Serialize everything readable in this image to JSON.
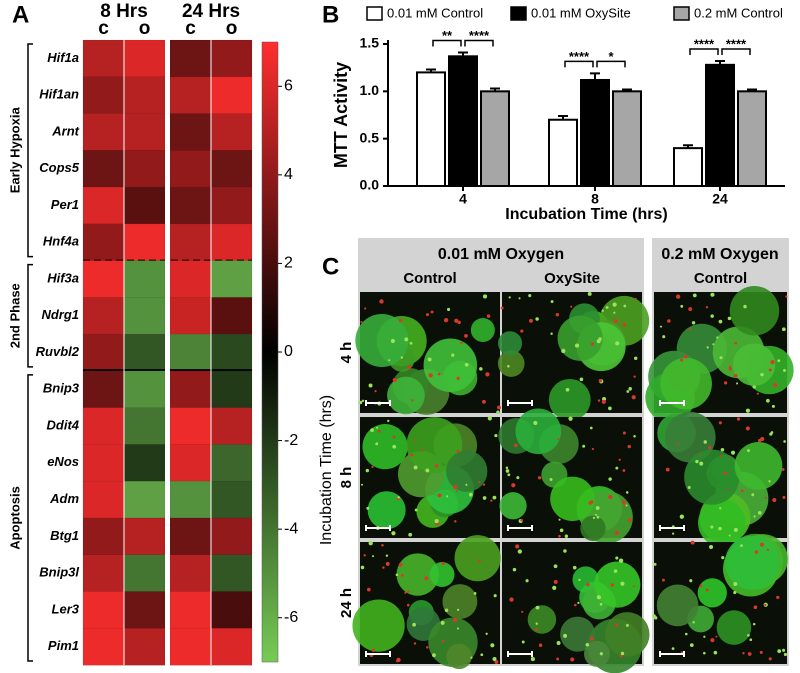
{
  "panel_labels": [
    "A",
    "B",
    "C"
  ],
  "chart_data": [
    {
      "type": "heatmap",
      "column_groups": [
        "8 Hrs",
        "24 Hrs"
      ],
      "columns": [
        "c",
        "o",
        "c",
        "o"
      ],
      "row_groups": [
        {
          "name": "Early Hypoxia",
          "rows": [
            "Hif1a",
            "Hif1an",
            "Arnt",
            "Cops5",
            "Per1",
            "Hnf4a"
          ],
          "values": [
            [
              5,
              6,
              3,
              4
            ],
            [
              4,
              5,
              5,
              6.5
            ],
            [
              5,
              5,
              3,
              5
            ],
            [
              3,
              4,
              4,
              3
            ],
            [
              6,
              2.5,
              3,
              4
            ],
            [
              4,
              6.5,
              5,
              6
            ]
          ]
        },
        {
          "name": "2nd Phase",
          "rows": [
            "Hif3a",
            "Ndrg1",
            "Ruvbl2"
          ],
          "values": [
            [
              6.5,
              -5,
              6,
              -5.5
            ],
            [
              5,
              -5,
              5.5,
              2.5
            ],
            [
              4,
              -3,
              -4.5,
              -2.5
            ]
          ]
        },
        {
          "name": "Apoptosis",
          "rows": [
            "Bnip3",
            "Ddit4",
            "eNos",
            "Adm",
            "Btg1",
            "Bnip3l",
            "Ler3",
            "Pim1"
          ],
          "values": [
            [
              3,
              -5,
              4,
              -2
            ],
            [
              6,
              -4,
              6.5,
              5
            ],
            [
              6,
              -2,
              6,
              -3.5
            ],
            [
              6,
              -5.5,
              -5,
              -3
            ],
            [
              4,
              5,
              3,
              4
            ],
            [
              5,
              -4,
              5,
              -3
            ],
            [
              6.5,
              3,
              6.5,
              2
            ],
            [
              6.5,
              5,
              6.5,
              6
            ]
          ]
        }
      ],
      "clim": [
        -7,
        7
      ],
      "cticks": [
        6,
        4,
        2,
        0,
        -2,
        -4,
        -6
      ],
      "colormap": {
        "low": "#77cc55",
        "mid": "#000000",
        "high": "#ff2e2e"
      }
    },
    {
      "type": "bar",
      "xlabel": "Incubation Time (hrs)",
      "ylabel": "MTT Activity",
      "categories": [
        "4",
        "8",
        "24"
      ],
      "series": [
        {
          "name": "0.01 mM Control",
          "color": "#ffffff",
          "values": [
            1.2,
            0.7,
            0.4
          ],
          "errors": [
            0.03,
            0.04,
            0.03
          ]
        },
        {
          "name": "0.01 mM OxySite",
          "color": "#000000",
          "values": [
            1.37,
            1.12,
            1.28
          ],
          "errors": [
            0.04,
            0.07,
            0.04
          ]
        },
        {
          "name": "0.2 mM Control",
          "color": "#a6a6a6",
          "values": [
            1.0,
            1.0,
            1.0
          ],
          "errors": [
            0.03,
            0.02,
            0.02
          ]
        }
      ],
      "significance": [
        [
          "**",
          "****"
        ],
        [
          "****",
          "*"
        ],
        [
          "****",
          "****"
        ]
      ],
      "ylim": [
        0,
        1.5
      ],
      "yticks": [
        {
          "value": 0,
          "label": "0.0"
        },
        0.5,
        {
          "value": 1,
          "label": "1.0"
        },
        1.5
      ]
    }
  ],
  "micrograph_panel": {
    "group_headers": [
      "0.01 mM Oxygen",
      "0.2 mM Oxygen"
    ],
    "columns": [
      "Control",
      "OxySite",
      "Control"
    ],
    "rows": [
      "4 h",
      "8 h",
      "24 h"
    ],
    "ylabel": "Incubation Time (hrs)"
  }
}
